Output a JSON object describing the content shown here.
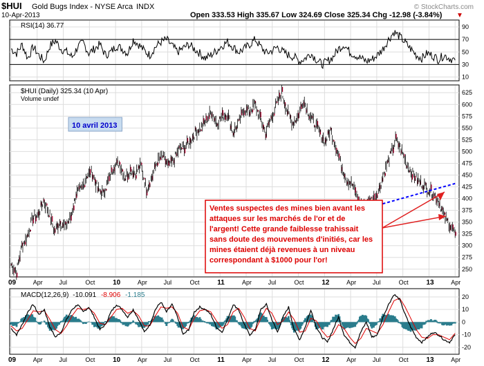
{
  "header": {
    "symbol": "$HUI",
    "name": "Gold Bugs Index - NYSE Arca",
    "exchange": "INDX",
    "date": "10-Apr-2013",
    "quote_line": "Open 333.53  High 335.67  Low 324.69  Close 325.34  Chg -12.98 (-3.84%)",
    "quote_arrow": "▼",
    "watermark": "© StockCharts.com"
  },
  "chart_data": [
    {
      "type": "line",
      "panel": "rsi",
      "label": "RSI(14) 36.77",
      "ylim": [
        5,
        100
      ],
      "y_ticks": [
        10,
        30,
        50,
        70,
        90
      ],
      "reference_lines": [
        30,
        70
      ],
      "grid": true,
      "series": [
        {
          "name": "RSI(14)",
          "x_range": [
            "2009-01",
            "2013-04"
          ],
          "last_value": 36.77,
          "values": [
            55,
            48,
            62,
            40,
            58,
            45,
            35,
            60,
            68,
            55,
            50,
            42,
            58,
            65,
            48,
            55,
            62,
            45,
            50,
            60,
            55,
            48,
            70,
            62,
            52,
            45,
            58,
            66,
            70,
            60,
            50,
            56,
            62,
            55,
            48,
            40,
            45,
            52,
            60,
            66,
            58,
            50,
            55,
            62,
            70,
            58,
            48,
            52,
            58,
            50,
            45,
            42,
            35,
            40,
            48,
            38,
            30,
            35,
            42,
            55,
            62,
            50,
            45,
            40,
            35,
            38,
            45,
            55,
            70,
            82,
            75,
            65,
            55,
            45,
            40,
            48,
            44,
            38,
            45,
            40,
            36.77
          ]
        }
      ]
    },
    {
      "type": "line",
      "panel": "price",
      "label": "$HUI (Daily) 325.34 (10 Apr)",
      "sublabel": "Volume undef",
      "ylim": [
        235,
        640
      ],
      "y_ticks": [
        250,
        275,
        300,
        325,
        350,
        375,
        400,
        425,
        450,
        475,
        500,
        525,
        550,
        575,
        600,
        625
      ],
      "grid": true,
      "series": [
        {
          "name": "$HUI (Daily)",
          "x_range": [
            "2009-01",
            "2013-04"
          ],
          "last_value": 325.34,
          "values": [
            260,
            245,
            300,
            320,
            360,
            365,
            395,
            370,
            330,
            350,
            340,
            360,
            410,
            420,
            450,
            455,
            420,
            410,
            440,
            470,
            475,
            445,
            460,
            455,
            470,
            420,
            445,
            480,
            490,
            470,
            480,
            505,
            510,
            520,
            540,
            550,
            565,
            585,
            560,
            575,
            580,
            540,
            560,
            590,
            585,
            600,
            570,
            540,
            570,
            600,
            625,
            585,
            560,
            575,
            610,
            580,
            560,
            540,
            520,
            545,
            510,
            470,
            440,
            430,
            400,
            380,
            395,
            400,
            420,
            460,
            490,
            525,
            505,
            475,
            455,
            440,
            430,
            420,
            410,
            395,
            360,
            345,
            325.34
          ]
        }
      ],
      "trendline": {
        "from": [
          "2012-05",
          375
        ],
        "to": [
          "2013-04",
          432
        ]
      },
      "annotations": [
        {
          "text": "10 avril 2013"
        },
        {
          "text": "Ventes suspectes des mines bien avant les attaques sur les marchés de l'or et de l'argent! Cette grande faiblesse trahissait sans doute des mouvements d'initiés, car les mines étaient déjà revenues à un niveau correspondant à $1000 pour l'or!"
        }
      ]
    },
    {
      "type": "line",
      "panel": "macd",
      "label": "MACD(12,26,9)",
      "macd_value": "-10.091",
      "signal_value": "-8.906",
      "hist_value": "-1.185",
      "ylim": [
        -25,
        26
      ],
      "y_ticks": [
        -20,
        -10,
        0,
        10,
        20
      ],
      "grid": true,
      "series": [
        {
          "name": "MACD",
          "x_range": [
            "2009-01",
            "2013-04"
          ],
          "last_value": -10.091,
          "values": [
            -5,
            -10,
            -2,
            8,
            14,
            6,
            10,
            -4,
            -12,
            -8,
            2,
            10,
            14,
            8,
            12,
            4,
            -6,
            -2,
            8,
            14,
            10,
            4,
            10,
            2,
            -8,
            -2,
            10,
            16,
            8,
            14,
            4,
            -10,
            -6,
            8,
            12,
            10,
            6,
            -4,
            -8,
            2,
            14,
            10,
            -2,
            -10,
            -6,
            10,
            14,
            2,
            -8,
            4,
            12,
            -6,
            -14,
            -4,
            10,
            -4,
            -12,
            -16,
            -6,
            4,
            -10,
            -16,
            -20,
            -8,
            0,
            -12,
            -10,
            4,
            14,
            22,
            18,
            6,
            -4,
            -12,
            -16,
            -12,
            -8,
            -10,
            -14,
            -16,
            -10.091
          ]
        },
        {
          "name": "Signal",
          "x_range": [
            "2009-01",
            "2013-04"
          ],
          "last_value": -8.906,
          "values": [
            -3,
            -7,
            -5,
            2,
            9,
            8,
            9,
            2,
            -6,
            -9,
            -3,
            5,
            11,
            10,
            11,
            7,
            -1,
            -2,
            4,
            10,
            11,
            7,
            9,
            5,
            -3,
            -3,
            5,
            12,
            11,
            12,
            7,
            -4,
            -6,
            3,
            9,
            10,
            8,
            1,
            -5,
            -2,
            8,
            11,
            4,
            -5,
            -7,
            3,
            11,
            7,
            -2,
            1,
            8,
            2,
            -8,
            -7,
            3,
            1,
            -7,
            -12,
            -10,
            -2,
            -5,
            -12,
            -17,
            -13,
            -5,
            -7,
            -9,
            -2,
            8,
            17,
            19,
            12,
            3,
            -6,
            -12,
            -13,
            -10,
            -10,
            -12,
            -14,
            -8.906
          ]
        },
        {
          "name": "Histogram",
          "x_range": [
            "2009-01",
            "2013-04"
          ],
          "last_value": -1.185,
          "values": [
            -2,
            -3,
            3,
            6,
            5,
            -2,
            1,
            -6,
            -6,
            1,
            5,
            5,
            3,
            -2,
            1,
            -3,
            -5,
            0,
            4,
            4,
            -1,
            -3,
            1,
            -3,
            -5,
            1,
            5,
            4,
            -3,
            2,
            -3,
            -6,
            0,
            5,
            3,
            0,
            -2,
            -5,
            -3,
            4,
            6,
            -1,
            -6,
            -5,
            1,
            7,
            3,
            -5,
            -6,
            3,
            4,
            -8,
            -6,
            3,
            7,
            -5,
            -5,
            -4,
            4,
            6,
            -5,
            -4,
            -3,
            5,
            5,
            -5,
            -1,
            6,
            6,
            5,
            -1,
            -6,
            -7,
            -6,
            -4,
            1,
            2,
            0,
            -2,
            -2,
            -1.185
          ]
        }
      ]
    }
  ],
  "x_axis": {
    "ticks": [
      {
        "label": "09",
        "t": 0,
        "year": true
      },
      {
        "label": "Apr",
        "t": 3
      },
      {
        "label": "Jul",
        "t": 6
      },
      {
        "label": "Oct",
        "t": 9
      },
      {
        "label": "10",
        "t": 12,
        "year": true
      },
      {
        "label": "Apr",
        "t": 15
      },
      {
        "label": "Jul",
        "t": 18
      },
      {
        "label": "Oct",
        "t": 21
      },
      {
        "label": "11",
        "t": 24,
        "year": true
      },
      {
        "label": "Apr",
        "t": 27
      },
      {
        "label": "Jul",
        "t": 30
      },
      {
        "label": "Oct",
        "t": 33
      },
      {
        "label": "12",
        "t": 36,
        "year": true
      },
      {
        "label": "Apr",
        "t": 39
      },
      {
        "label": "Jul",
        "t": 42
      },
      {
        "label": "Oct",
        "t": 45
      },
      {
        "label": "13",
        "t": 48,
        "year": true
      },
      {
        "label": "Apr",
        "t": 51
      }
    ],
    "span": 51.3
  },
  "colors": {
    "annotation_text": "#dd0000",
    "annotation_border": "#dd0000",
    "date_label_text": "#0000cc",
    "date_label_bg": "#c8dcf0",
    "trendline": "#0000ff",
    "arrow": "#e02020",
    "macd_line": "#000000",
    "signal_line": "#e00000",
    "histogram": "#2a7c8c",
    "grid": "#dddddd",
    "panel_border": "#000000",
    "candles": "#b00030"
  }
}
